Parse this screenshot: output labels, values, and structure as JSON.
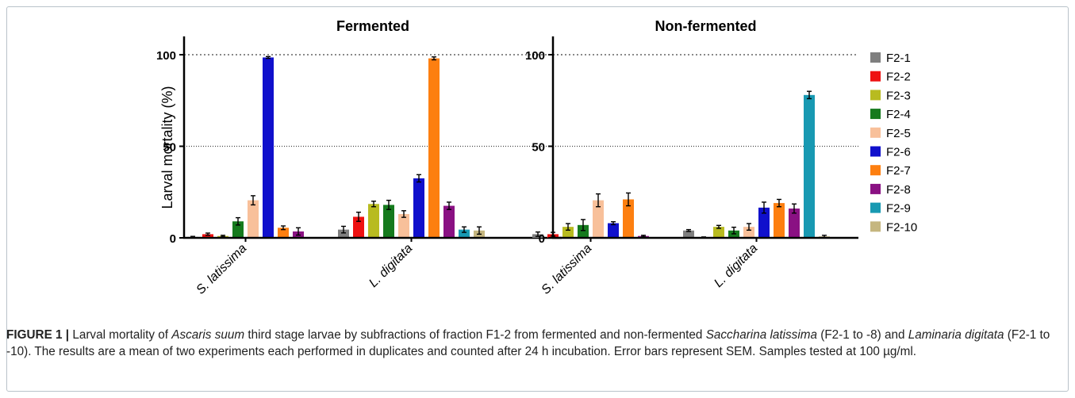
{
  "figure": {
    "caption": {
      "label": "FIGURE 1 |",
      "t1": " Larval mortality of ",
      "i1": "Ascaris suum",
      "t2": " third stage larvae by subfractions of fraction F1-2 from fermented and non-fermented ",
      "i2": "Saccharina latissima",
      "t3": " (F2-1 to -8) and ",
      "i3": "Laminaria digitata",
      "t4": " (F2-1 to -10). The results are a mean of two experiments each performed in duplicates and counted after 24 h incubation. Error bars represent SEM. Samples tested at 100 µg/ml."
    }
  },
  "chart_data": [
    {
      "type": "bar",
      "title": "Fermented",
      "ylabel": "Larval mortality (%)",
      "xlabel": "",
      "ylim": [
        0,
        110
      ],
      "yticks": [
        0,
        50,
        100
      ],
      "reference_lines": [
        50,
        100
      ],
      "categories": [
        "S. latissima",
        "L. digitata"
      ],
      "series": [
        {
          "name": "F2-1",
          "values": [
            0.5,
            4.5
          ],
          "errors": [
            0.3,
            1.8
          ]
        },
        {
          "name": "F2-2",
          "values": [
            2.0,
            11.5
          ],
          "errors": [
            0.6,
            2.5
          ]
        },
        {
          "name": "F2-3",
          "values": [
            1.0,
            18.5
          ],
          "errors": [
            0.4,
            1.5
          ]
        },
        {
          "name": "F2-4",
          "values": [
            9.0,
            18.0
          ],
          "errors": [
            2.0,
            2.5
          ]
        },
        {
          "name": "F2-5",
          "values": [
            20.5,
            13.0
          ],
          "errors": [
            2.5,
            1.8
          ]
        },
        {
          "name": "F2-6",
          "values": [
            98.5,
            32.5
          ],
          "errors": [
            0.5,
            2.0
          ]
        },
        {
          "name": "F2-7",
          "values": [
            5.5,
            98.0
          ],
          "errors": [
            1.0,
            0.8
          ]
        },
        {
          "name": "F2-8",
          "values": [
            3.5,
            17.5
          ],
          "errors": [
            2.0,
            2.0
          ]
        },
        {
          "name": "F2-9",
          "values": [
            null,
            4.5
          ],
          "errors": [
            null,
            1.5
          ]
        },
        {
          "name": "F2-10",
          "values": [
            null,
            4.0
          ],
          "errors": [
            null,
            2.0
          ]
        }
      ]
    },
    {
      "type": "bar",
      "title": "Non-fermented",
      "ylabel": "",
      "xlabel": "",
      "ylim": [
        0,
        110
      ],
      "yticks": [
        0,
        50,
        100
      ],
      "reference_lines": [
        50,
        100
      ],
      "categories": [
        "S. latissima",
        "L. digitata"
      ],
      "series": [
        {
          "name": "F2-1",
          "values": [
            2.0,
            4.0
          ],
          "errors": [
            1.2,
            0.5
          ]
        },
        {
          "name": "F2-2",
          "values": [
            2.0,
            0.3
          ],
          "errors": [
            1.0,
            0.2
          ]
        },
        {
          "name": "F2-3",
          "values": [
            6.0,
            6.0
          ],
          "errors": [
            1.8,
            0.8
          ]
        },
        {
          "name": "F2-4",
          "values": [
            7.0,
            4.0
          ],
          "errors": [
            3.0,
            1.8
          ]
        },
        {
          "name": "F2-5",
          "values": [
            20.5,
            6.0
          ],
          "errors": [
            3.5,
            1.8
          ]
        },
        {
          "name": "F2-6",
          "values": [
            8.0,
            16.5
          ],
          "errors": [
            0.8,
            3.0
          ]
        },
        {
          "name": "F2-7",
          "values": [
            21.0,
            19.0
          ],
          "errors": [
            3.5,
            2.0
          ]
        },
        {
          "name": "F2-8",
          "values": [
            1.0,
            16.0
          ],
          "errors": [
            0.4,
            2.5
          ]
        },
        {
          "name": "F2-9",
          "values": [
            null,
            78.0
          ],
          "errors": [
            null,
            2.0
          ]
        },
        {
          "name": "F2-10",
          "values": [
            null,
            0.8
          ],
          "errors": [
            null,
            0.6
          ]
        }
      ]
    }
  ],
  "colors": {
    "F2-1": "#7f7f7f",
    "F2-2": "#ee1111",
    "F2-3": "#b8bb20",
    "F2-4": "#157a1d",
    "F2-5": "#f8c09a",
    "F2-6": "#1010cc",
    "F2-7": "#fd7f10",
    "F2-8": "#8a1183",
    "F2-9": "#1899b2",
    "F2-10": "#c5b67f",
    "axis": "#000000",
    "refline": "#444444",
    "errorbar": "#000000"
  }
}
